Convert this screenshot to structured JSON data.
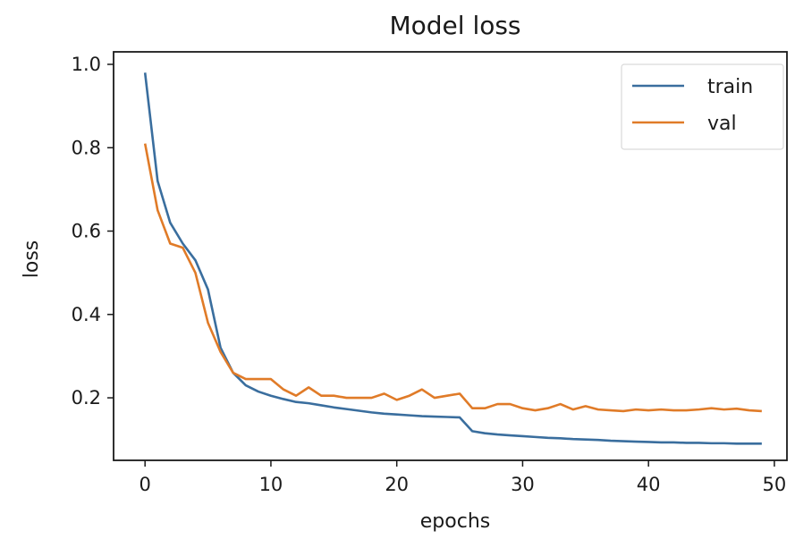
{
  "chart_data": {
    "type": "line",
    "title": "Model loss",
    "xlabel": "epochs",
    "ylabel": "loss",
    "xlim": [
      -2.5,
      51
    ],
    "ylim": [
      0.05,
      1.03
    ],
    "x_ticks": [
      0,
      10,
      20,
      30,
      40,
      50
    ],
    "y_ticks": [
      0.2,
      0.4,
      0.6,
      0.8,
      1.0
    ],
    "x_tick_labels": [
      "0",
      "10",
      "20",
      "30",
      "40",
      "50"
    ],
    "y_tick_labels": [
      "0.2",
      "0.4",
      "0.6",
      "0.8",
      "1.0"
    ],
    "grid": false,
    "legend_position": "top-right",
    "x": [
      0,
      1,
      2,
      3,
      4,
      5,
      6,
      7,
      8,
      9,
      10,
      11,
      12,
      13,
      14,
      15,
      16,
      17,
      18,
      19,
      20,
      21,
      22,
      23,
      24,
      25,
      26,
      27,
      28,
      29,
      30,
      31,
      32,
      33,
      34,
      35,
      36,
      37,
      38,
      39,
      40,
      41,
      42,
      43,
      44,
      45,
      46,
      47,
      48,
      49
    ],
    "series": [
      {
        "name": "train",
        "color": "#3a6e9e",
        "values": [
          0.98,
          0.72,
          0.62,
          0.57,
          0.53,
          0.46,
          0.32,
          0.26,
          0.23,
          0.215,
          0.205,
          0.197,
          0.19,
          0.187,
          0.182,
          0.177,
          0.173,
          0.169,
          0.165,
          0.162,
          0.16,
          0.158,
          0.156,
          0.155,
          0.154,
          0.153,
          0.12,
          0.115,
          0.112,
          0.11,
          0.108,
          0.106,
          0.104,
          0.103,
          0.101,
          0.1,
          0.099,
          0.097,
          0.096,
          0.095,
          0.094,
          0.093,
          0.093,
          0.092,
          0.092,
          0.091,
          0.091,
          0.09,
          0.09,
          0.09
        ]
      },
      {
        "name": "val",
        "color": "#e07b28",
        "values": [
          0.81,
          0.65,
          0.57,
          0.56,
          0.5,
          0.38,
          0.31,
          0.26,
          0.245,
          0.245,
          0.245,
          0.22,
          0.205,
          0.225,
          0.205,
          0.205,
          0.2,
          0.2,
          0.2,
          0.21,
          0.195,
          0.205,
          0.22,
          0.2,
          0.205,
          0.21,
          0.175,
          0.175,
          0.185,
          0.185,
          0.175,
          0.17,
          0.175,
          0.185,
          0.172,
          0.18,
          0.172,
          0.17,
          0.168,
          0.172,
          0.17,
          0.172,
          0.17,
          0.17,
          0.172,
          0.175,
          0.172,
          0.174,
          0.17,
          0.168
        ]
      }
    ]
  }
}
